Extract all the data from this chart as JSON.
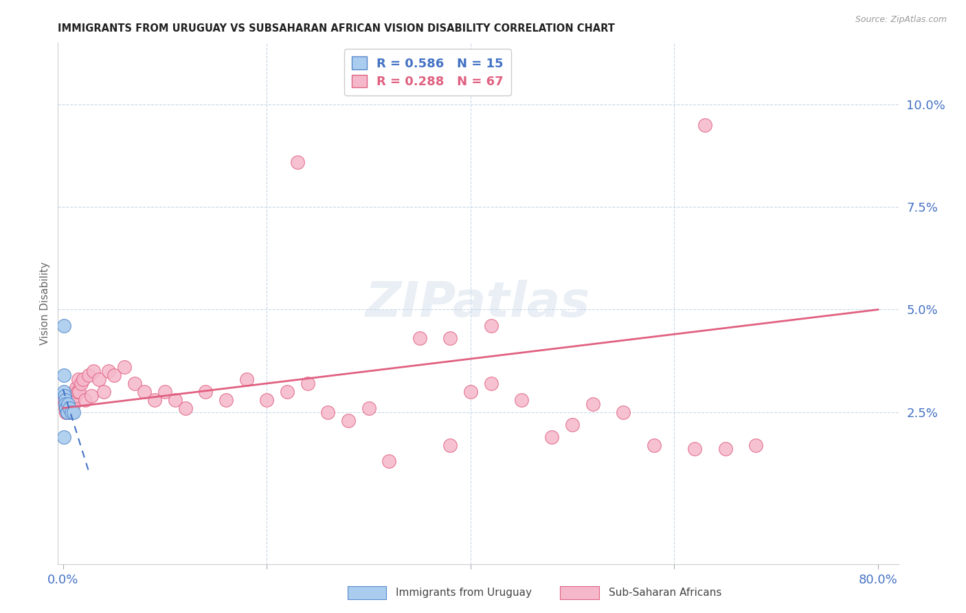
{
  "title": "IMMIGRANTS FROM URUGUAY VS SUBSAHARAN AFRICAN VISION DISABILITY CORRELATION CHART",
  "source": "Source: ZipAtlas.com",
  "ylabel": "Vision Disability",
  "xlim": [
    -0.005,
    0.82
  ],
  "ylim": [
    -0.012,
    0.115
  ],
  "xtick_positions": [
    0.0,
    0.2,
    0.4,
    0.6,
    0.8
  ],
  "xtick_labels": [
    "0.0%",
    "",
    "",
    "",
    "80.0%"
  ],
  "ytick_labels_right": [
    "2.5%",
    "5.0%",
    "7.5%",
    "10.0%"
  ],
  "ytick_vals_right": [
    0.025,
    0.05,
    0.075,
    0.1
  ],
  "title_fontsize": 11,
  "axis_label_color": "#4472c4",
  "background_color": "#ffffff",
  "uruguay_color": "#aaccee",
  "uruguay_edge_color": "#5588cc",
  "uruguay_R": 0.586,
  "uruguay_N": 15,
  "uruguay_trend_color": "#4472c4",
  "africa_color": "#f5b8cb",
  "africa_edge_color": "#e06080",
  "africa_R": 0.288,
  "africa_N": 67,
  "africa_trend_color": "#e06080",
  "uruguay_x": [
    0.0005,
    0.001,
    0.001,
    0.0015,
    0.002,
    0.002,
    0.003,
    0.003,
    0.004,
    0.004,
    0.005,
    0.006,
    0.008,
    0.01,
    0.0005
  ],
  "uruguay_y": [
    0.046,
    0.034,
    0.03,
    0.029,
    0.028,
    0.027,
    0.026,
    0.026,
    0.025,
    0.025,
    0.027,
    0.026,
    0.025,
    0.025,
    0.019
  ],
  "africa_x": [
    0.001,
    0.002,
    0.002,
    0.003,
    0.003,
    0.004,
    0.004,
    0.005,
    0.005,
    0.006,
    0.006,
    0.007,
    0.008,
    0.008,
    0.009,
    0.01,
    0.01,
    0.011,
    0.012,
    0.013,
    0.014,
    0.015,
    0.016,
    0.018,
    0.02,
    0.022,
    0.025,
    0.028,
    0.03,
    0.035,
    0.04,
    0.045,
    0.05,
    0.06,
    0.07,
    0.08,
    0.09,
    0.1,
    0.11,
    0.12,
    0.14,
    0.16,
    0.18,
    0.2,
    0.22,
    0.24,
    0.26,
    0.23,
    0.28,
    0.3,
    0.35,
    0.38,
    0.4,
    0.42,
    0.45,
    0.48,
    0.5,
    0.52,
    0.55,
    0.58,
    0.62,
    0.65,
    0.68,
    0.63,
    0.42,
    0.38,
    0.32
  ],
  "africa_y": [
    0.028,
    0.027,
    0.026,
    0.025,
    0.025,
    0.026,
    0.025,
    0.027,
    0.025,
    0.028,
    0.026,
    0.028,
    0.027,
    0.026,
    0.029,
    0.028,
    0.027,
    0.03,
    0.029,
    0.031,
    0.03,
    0.033,
    0.03,
    0.032,
    0.033,
    0.028,
    0.034,
    0.029,
    0.035,
    0.033,
    0.03,
    0.035,
    0.034,
    0.036,
    0.032,
    0.03,
    0.028,
    0.03,
    0.028,
    0.026,
    0.03,
    0.028,
    0.033,
    0.028,
    0.03,
    0.032,
    0.025,
    0.086,
    0.023,
    0.026,
    0.043,
    0.043,
    0.03,
    0.032,
    0.028,
    0.019,
    0.022,
    0.027,
    0.025,
    0.017,
    0.016,
    0.016,
    0.017,
    0.095,
    0.046,
    0.017,
    0.013
  ],
  "africa_trend_x0": 0.0,
  "africa_trend_x1": 0.8,
  "africa_trend_y0": 0.026,
  "africa_trend_y1": 0.05,
  "uru_trend_x0": 0.0,
  "uru_trend_x1": 0.025,
  "grid_color": "#c8d8e8",
  "grid_linestyle": "--",
  "spine_color": "#cccccc"
}
